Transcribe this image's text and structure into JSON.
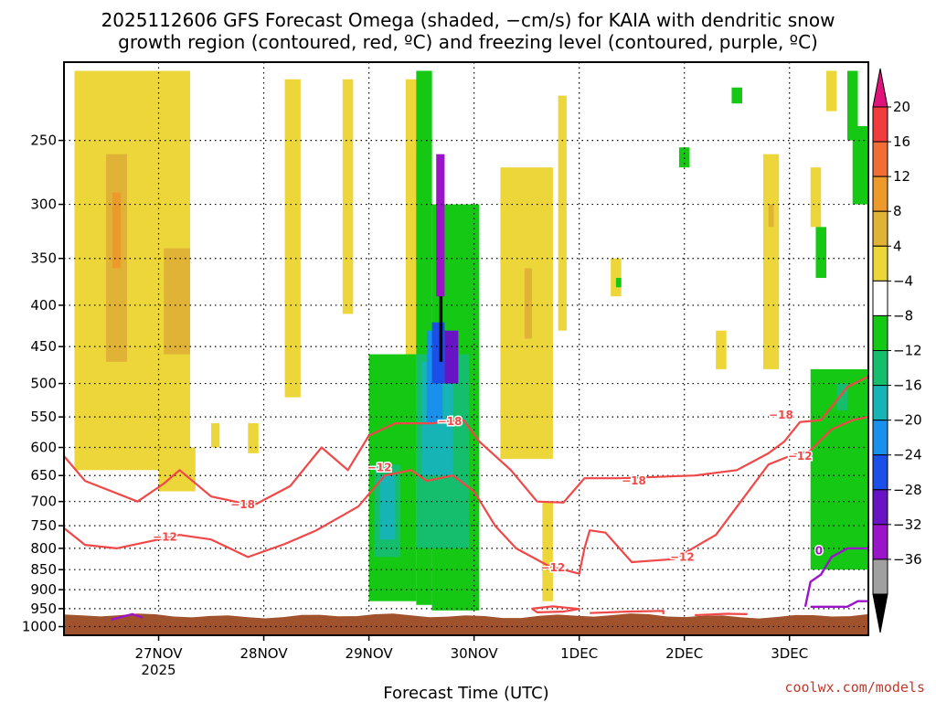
{
  "chart_data": {
    "type": "heatmap",
    "title_line1": "2025112606 GFS Forecast Omega (shaded, −cm/s) for KAIA with dendritic snow",
    "title_line2": "growth region (contoured, red, ºC) and freezing level (contoured, purple, ºC)",
    "xlabel": "Forecast Time (UTC)",
    "ylabel": "",
    "x_ticks": [
      {
        "day": 1,
        "label": "27NOV",
        "sub": "2025"
      },
      {
        "day": 2,
        "label": "28NOV",
        "sub": ""
      },
      {
        "day": 3,
        "label": "29NOV",
        "sub": ""
      },
      {
        "day": 4,
        "label": "30NOV",
        "sub": ""
      },
      {
        "day": 5,
        "label": "1DEC",
        "sub": ""
      },
      {
        "day": 6,
        "label": "2DEC",
        "sub": ""
      },
      {
        "day": 7,
        "label": "3DEC",
        "sub": ""
      }
    ],
    "xlim": [
      0.1,
      7.75
    ],
    "y_ticks": [
      250,
      300,
      350,
      400,
      450,
      500,
      550,
      600,
      650,
      700,
      750,
      800,
      850,
      900,
      950,
      1000
    ],
    "ylim": [
      200,
      1025
    ],
    "grid": true,
    "surface_pressure": 970,
    "colorbar": {
      "labels": [
        "20",
        "16",
        "12",
        "8",
        "4",
        "−4",
        "−8",
        "−12",
        "−16",
        "−20",
        "−24",
        "−28",
        "−32",
        "−36"
      ],
      "colors": [
        "#e0137a",
        "#f03c3c",
        "#f06e36",
        "#ec9a2c",
        "#e0b236",
        "#ecd63a",
        "#ffffff",
        "#14c814",
        "#14be6c",
        "#16b4b4",
        "#1890ec",
        "#1c4ee8",
        "#6614c4",
        "#9c14c8",
        "#a0a0a0",
        "#000000"
      ]
    },
    "contours": [
      {
        "label": "−18",
        "color": "#f04848",
        "points": [
          [
            0.1,
            615
          ],
          [
            0.3,
            660
          ],
          [
            0.8,
            700
          ],
          [
            1.05,
            665
          ],
          [
            1.2,
            640
          ],
          [
            1.5,
            690
          ],
          [
            1.9,
            708
          ],
          [
            2.25,
            670
          ],
          [
            2.55,
            600
          ],
          [
            2.8,
            640
          ],
          [
            3.0,
            580
          ],
          [
            3.25,
            560
          ],
          [
            3.6,
            560
          ],
          [
            3.9,
            555
          ],
          [
            4.05,
            590
          ],
          [
            4.35,
            640
          ],
          [
            4.6,
            700
          ],
          [
            4.85,
            702
          ],
          [
            5.05,
            655
          ],
          [
            5.4,
            655
          ],
          [
            6.1,
            650
          ],
          [
            6.5,
            640
          ],
          [
            6.8,
            610
          ],
          [
            6.95,
            590
          ],
          [
            7.1,
            558
          ],
          [
            7.3,
            555
          ],
          [
            7.55,
            505
          ],
          [
            7.75,
            490
          ]
        ]
      },
      {
        "label": "−12",
        "color": "#f04848",
        "points": [
          [
            0.1,
            755
          ],
          [
            0.3,
            792
          ],
          [
            0.6,
            800
          ],
          [
            1.0,
            780
          ],
          [
            1.2,
            770
          ],
          [
            1.5,
            780
          ],
          [
            1.85,
            820
          ],
          [
            2.2,
            790
          ],
          [
            2.5,
            760
          ],
          [
            2.9,
            710
          ],
          [
            3.15,
            650
          ],
          [
            3.4,
            640
          ],
          [
            3.55,
            660
          ],
          [
            3.8,
            650
          ],
          [
            4.0,
            680
          ],
          [
            4.2,
            750
          ],
          [
            4.4,
            800
          ],
          [
            4.7,
            840
          ],
          [
            5.0,
            860
          ],
          [
            5.05,
            800
          ],
          [
            5.1,
            760
          ],
          [
            5.25,
            765
          ],
          [
            5.5,
            832
          ],
          [
            5.9,
            825
          ],
          [
            6.3,
            770
          ],
          [
            6.8,
            630
          ],
          [
            7.0,
            615
          ],
          [
            7.2,
            605
          ],
          [
            7.4,
            570
          ],
          [
            7.6,
            555
          ],
          [
            7.75,
            550
          ]
        ]
      },
      {
        "label": "",
        "color": "#f04848",
        "points": [
          [
            4.55,
            950
          ],
          [
            4.75,
            944
          ],
          [
            5.0,
            951
          ],
          [
            4.85,
            958
          ],
          [
            4.6,
            960
          ],
          [
            4.55,
            950
          ]
        ]
      },
      {
        "label": "",
        "color": "#f04848",
        "points": [
          [
            5.1,
            962
          ],
          [
            5.45,
            958
          ],
          [
            5.8,
            956
          ],
          [
            5.8,
            965
          ]
        ]
      },
      {
        "label": "",
        "color": "#f04848",
        "points": [
          [
            6.1,
            968
          ],
          [
            6.4,
            964
          ],
          [
            6.6,
            965
          ]
        ]
      }
    ],
    "freezing_contours": [
      {
        "label": "0",
        "color": "#9c14c8",
        "points": [
          [
            7.15,
            945
          ],
          [
            7.2,
            880
          ],
          [
            7.3,
            862
          ],
          [
            7.4,
            820
          ],
          [
            7.55,
            800
          ],
          [
            7.75,
            800
          ]
        ]
      },
      {
        "label": "",
        "color": "#9c14c8",
        "points": [
          [
            7.2,
            945
          ],
          [
            7.55,
            945
          ],
          [
            7.65,
            930
          ],
          [
            7.75,
            930
          ]
        ]
      },
      {
        "label": "",
        "color": "#9c14c8",
        "points": [
          [
            0.55,
            980
          ],
          [
            0.75,
            965
          ],
          [
            0.85,
            975
          ]
        ]
      }
    ],
    "contour_labels": [
      {
        "text": "−18",
        "color": "#f04848",
        "x": 1.8,
        "p": 706
      },
      {
        "text": "−12",
        "color": "#f04848",
        "x": 1.06,
        "p": 775
      },
      {
        "text": "−12",
        "color": "#f04848",
        "x": 3.1,
        "p": 635
      },
      {
        "text": "−18",
        "color": "#f04848",
        "x": 3.77,
        "p": 557
      },
      {
        "text": "−12",
        "color": "#f04848",
        "x": 4.75,
        "p": 845
      },
      {
        "text": "−18",
        "color": "#f04848",
        "x": 5.52,
        "p": 660
      },
      {
        "text": "−12",
        "color": "#f04848",
        "x": 5.98,
        "p": 820
      },
      {
        "text": "−18",
        "color": "#f04848",
        "x": 6.92,
        "p": 547
      },
      {
        "text": "−12",
        "color": "#f04848",
        "x": 7.1,
        "p": 615
      },
      {
        "text": "0",
        "color": "#9c14c8",
        "x": 7.28,
        "p": 805
      }
    ],
    "shaded_regions": [
      {
        "color": "#ecd63a",
        "x0": 0.2,
        "x1": 1.3,
        "p0": 205,
        "p1": 640
      },
      {
        "color": "#ecd63a",
        "x0": 1.0,
        "x1": 1.35,
        "p0": 600,
        "p1": 680
      },
      {
        "color": "#e0b236",
        "x0": 0.5,
        "x1": 0.7,
        "p0": 260,
        "p1": 470
      },
      {
        "color": "#e0b236",
        "x0": 1.05,
        "x1": 1.3,
        "p0": 340,
        "p1": 460
      },
      {
        "color": "#ec9a2c",
        "x0": 0.56,
        "x1": 0.64,
        "p0": 290,
        "p1": 360
      },
      {
        "color": "#ecd63a",
        "x0": 1.5,
        "x1": 1.58,
        "p0": 560,
        "p1": 600
      },
      {
        "color": "#ecd63a",
        "x0": 1.85,
        "x1": 1.95,
        "p0": 560,
        "p1": 610
      },
      {
        "color": "#ecd63a",
        "x0": 2.2,
        "x1": 2.35,
        "p0": 210,
        "p1": 520
      },
      {
        "color": "#ecd63a",
        "x0": 2.75,
        "x1": 2.85,
        "p0": 210,
        "p1": 410
      },
      {
        "color": "#ecd63a",
        "x0": 3.35,
        "x1": 3.55,
        "p0": 210,
        "p1": 640
      },
      {
        "color": "#e0b236",
        "x0": 3.45,
        "x1": 3.5,
        "p0": 260,
        "p1": 460
      },
      {
        "color": "#14c814",
        "x0": 3.0,
        "x1": 3.45,
        "p0": 460,
        "p1": 930
      },
      {
        "color": "#14c814",
        "x0": 3.45,
        "x1": 3.6,
        "p0": 205,
        "p1": 940
      },
      {
        "color": "#14c814",
        "x0": 3.6,
        "x1": 4.05,
        "p0": 300,
        "p1": 955
      },
      {
        "color": "#14be6c",
        "x0": 3.05,
        "x1": 3.3,
        "p0": 630,
        "p1": 820
      },
      {
        "color": "#16b4b4",
        "x0": 3.1,
        "x1": 3.25,
        "p0": 650,
        "p1": 780
      },
      {
        "color": "#14be6c",
        "x0": 3.45,
        "x1": 3.95,
        "p0": 460,
        "p1": 800
      },
      {
        "color": "#16b4b4",
        "x0": 3.5,
        "x1": 3.8,
        "p0": 470,
        "p1": 650
      },
      {
        "color": "#1890ec",
        "x0": 3.55,
        "x1": 3.7,
        "p0": 430,
        "p1": 560
      },
      {
        "color": "#1c4ee8",
        "x0": 3.6,
        "x1": 3.72,
        "p0": 420,
        "p1": 500
      },
      {
        "color": "#6614c4",
        "x0": 3.72,
        "x1": 3.85,
        "p0": 430,
        "p1": 500
      },
      {
        "color": "#9c14c8",
        "x0": 3.64,
        "x1": 3.72,
        "p0": 260,
        "p1": 390
      },
      {
        "color": "#000000",
        "x0": 3.67,
        "x1": 3.7,
        "p0": 390,
        "p1": 470
      },
      {
        "color": "#ecd63a",
        "x0": 4.25,
        "x1": 4.75,
        "p0": 270,
        "p1": 620
      },
      {
        "color": "#e0b236",
        "x0": 4.48,
        "x1": 4.55,
        "p0": 360,
        "p1": 440
      },
      {
        "color": "#ecd63a",
        "x0": 4.8,
        "x1": 4.88,
        "p0": 220,
        "p1": 430
      },
      {
        "color": "#ecd63a",
        "x0": 4.65,
        "x1": 4.75,
        "p0": 700,
        "p1": 930
      },
      {
        "color": "#ecd63a",
        "x0": 5.3,
        "x1": 5.4,
        "p0": 350,
        "p1": 390
      },
      {
        "color": "#ecd63a",
        "x0": 6.3,
        "x1": 6.4,
        "p0": 430,
        "p1": 480
      },
      {
        "color": "#ecd63a",
        "x0": 6.75,
        "x1": 6.9,
        "p0": 260,
        "p1": 480
      },
      {
        "color": "#e0b236",
        "x0": 6.8,
        "x1": 6.85,
        "p0": 300,
        "p1": 320
      },
      {
        "color": "#ecd63a",
        "x0": 7.2,
        "x1": 7.3,
        "p0": 270,
        "p1": 320
      },
      {
        "color": "#ecd63a",
        "x0": 7.35,
        "x1": 7.45,
        "p0": 205,
        "p1": 230
      },
      {
        "color": "#14c814",
        "x0": 7.2,
        "x1": 7.75,
        "p0": 480,
        "p1": 850
      },
      {
        "color": "#14c814",
        "x0": 7.55,
        "x1": 7.65,
        "p0": 205,
        "p1": 250
      },
      {
        "color": "#14c814",
        "x0": 7.6,
        "x1": 7.75,
        "p0": 240,
        "p1": 300
      },
      {
        "color": "#14c814",
        "x0": 7.25,
        "x1": 7.35,
        "p0": 320,
        "p1": 370
      },
      {
        "color": "#14be6c",
        "x0": 7.45,
        "x1": 7.55,
        "p0": 500,
        "p1": 540
      },
      {
        "color": "#14c814",
        "x0": 6.45,
        "x1": 6.55,
        "p0": 215,
        "p1": 225
      },
      {
        "color": "#14c814",
        "x0": 5.95,
        "x1": 6.05,
        "p0": 255,
        "p1": 270
      },
      {
        "color": "#14c814",
        "x0": 5.35,
        "x1": 5.4,
        "p0": 370,
        "p1": 380
      }
    ]
  },
  "credit": "coolwx.com/models"
}
